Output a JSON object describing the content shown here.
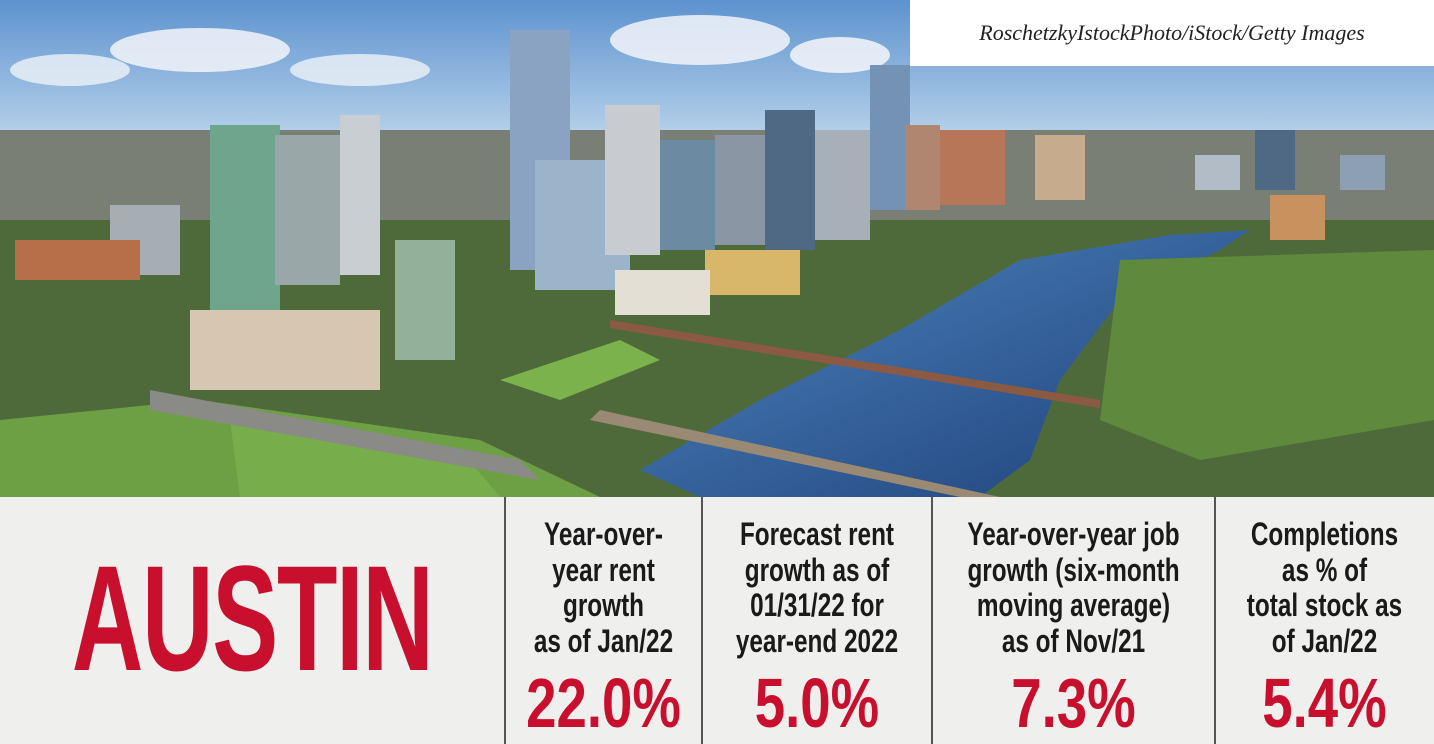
{
  "credit": "RoschetzkyIstockPhoto/iStock/Getty Images",
  "city": "AUSTIN",
  "stats": [
    {
      "label": [
        "Year-over-",
        "year rent",
        "growth",
        "as of Jan/22"
      ],
      "value": "22.0%"
    },
    {
      "label": [
        "Forecast rent",
        "growth as of",
        "01/31/22 for",
        "year-end 2022"
      ],
      "value": "5.0%"
    },
    {
      "label": [
        "Year-over-year job",
        "growth (six-month",
        "moving average)",
        "as of Nov/21"
      ],
      "value": "7.3%"
    },
    {
      "label": [
        "Completions",
        "as % of",
        "total stock as",
        "of Jan/22"
      ],
      "value": "5.4%"
    }
  ]
}
